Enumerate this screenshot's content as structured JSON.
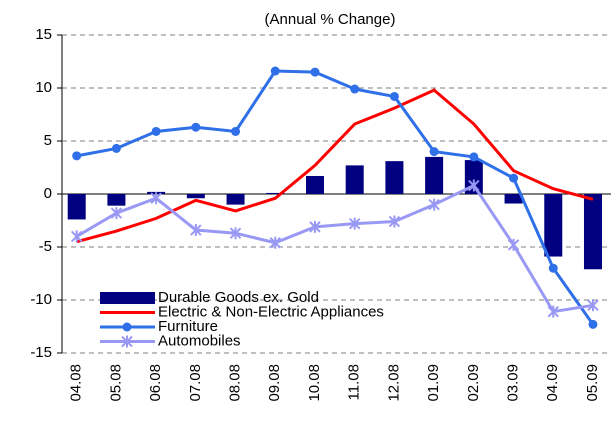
{
  "chart_data": {
    "type": "bar_line",
    "title": "(Annual % Change)",
    "categories": [
      "04.08",
      "05.08",
      "06.08",
      "07.08",
      "08.08",
      "09.08",
      "10.08",
      "11.08",
      "12.08",
      "01.09",
      "02.09",
      "03.09",
      "04.09",
      "05.09"
    ],
    "series": [
      {
        "name": "Durable Goods ex. Gold",
        "type": "bar",
        "color": "#000080",
        "values": [
          -2.4,
          -1.1,
          0.2,
          -0.4,
          -1.0,
          0.1,
          1.7,
          2.7,
          3.1,
          3.5,
          3.2,
          -0.9,
          -5.9,
          -7.1
        ]
      },
      {
        "name": "Electric & Non-Electric Appliances",
        "type": "line",
        "marker": "none",
        "color": "#ff0000",
        "values": [
          -4.5,
          -3.5,
          -2.3,
          -0.6,
          -1.6,
          -0.4,
          2.7,
          6.6,
          8.1,
          9.8,
          6.6,
          2.2,
          0.5,
          -0.5
        ]
      },
      {
        "name": "Furniture",
        "type": "line",
        "marker": "circle",
        "color": "#2f6fe8",
        "values": [
          3.6,
          4.3,
          5.9,
          6.3,
          5.9,
          11.6,
          11.5,
          9.9,
          9.2,
          4.0,
          3.5,
          1.5,
          -7.0,
          -12.3
        ]
      },
      {
        "name": "Automobiles",
        "type": "line",
        "marker": "asterisk",
        "color": "#9999f5",
        "values": [
          -4.0,
          -1.8,
          -0.4,
          -3.4,
          -3.7,
          -4.6,
          -3.1,
          -2.8,
          -2.6,
          -1.0,
          0.8,
          -4.8,
          -11.1,
          -10.5
        ]
      }
    ],
    "ylim": [
      -15,
      15
    ],
    "yticks": [
      -15,
      -10,
      -5,
      0,
      5,
      10,
      15
    ],
    "grid": true,
    "legend": "lower left"
  }
}
